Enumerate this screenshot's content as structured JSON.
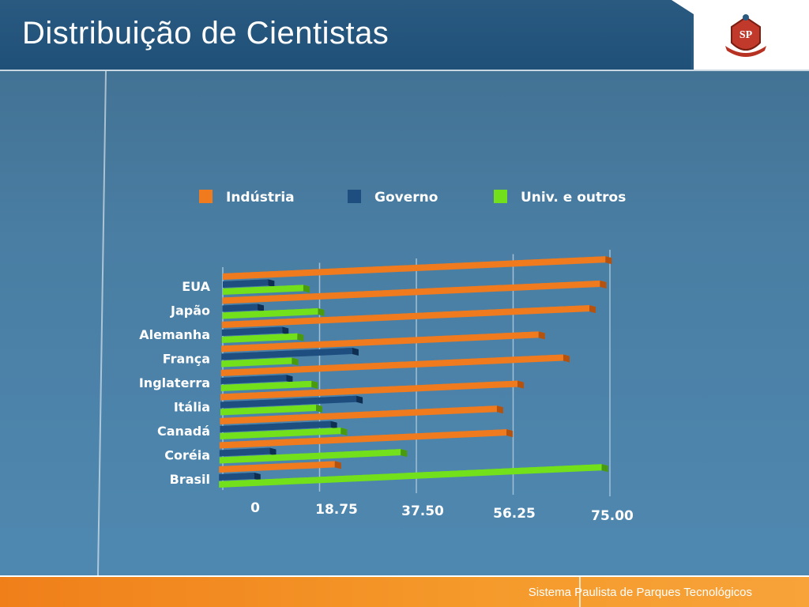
{
  "header": {
    "title": "Distribuição de Cientistas",
    "logo_text": "SP"
  },
  "footer": {
    "text": "Sistema Paulista de Parques Tecnológicos"
  },
  "colors": {
    "industria": "#f07a1e",
    "governo": "#1e4e80",
    "univ": "#72e01a",
    "footer": "#f28a24",
    "header": "#24557c"
  },
  "chart_data": {
    "type": "bar",
    "orientation": "horizontal",
    "legend_position": "top",
    "grid": true,
    "categories": [
      "EUA",
      "Japão",
      "Alemanha",
      "França",
      "Inglaterra",
      "Itália",
      "Canadá",
      "Coréia",
      "Brasil"
    ],
    "series": [
      {
        "name": "Indústria",
        "values": [
          76,
          75,
          73,
          63,
          68,
          59,
          55,
          57,
          23
        ]
      },
      {
        "name": "Governo",
        "values": [
          9,
          7,
          12,
          26,
          13,
          27,
          22,
          10,
          7
        ]
      },
      {
        "name": "Univ. e outros",
        "values": [
          16,
          19,
          15,
          14,
          18,
          19,
          24,
          36,
          76
        ]
      }
    ],
    "x_ticks": [
      "0",
      "18.75",
      "37.50",
      "56.25",
      "75.00"
    ],
    "xlim": [
      0,
      75
    ]
  }
}
